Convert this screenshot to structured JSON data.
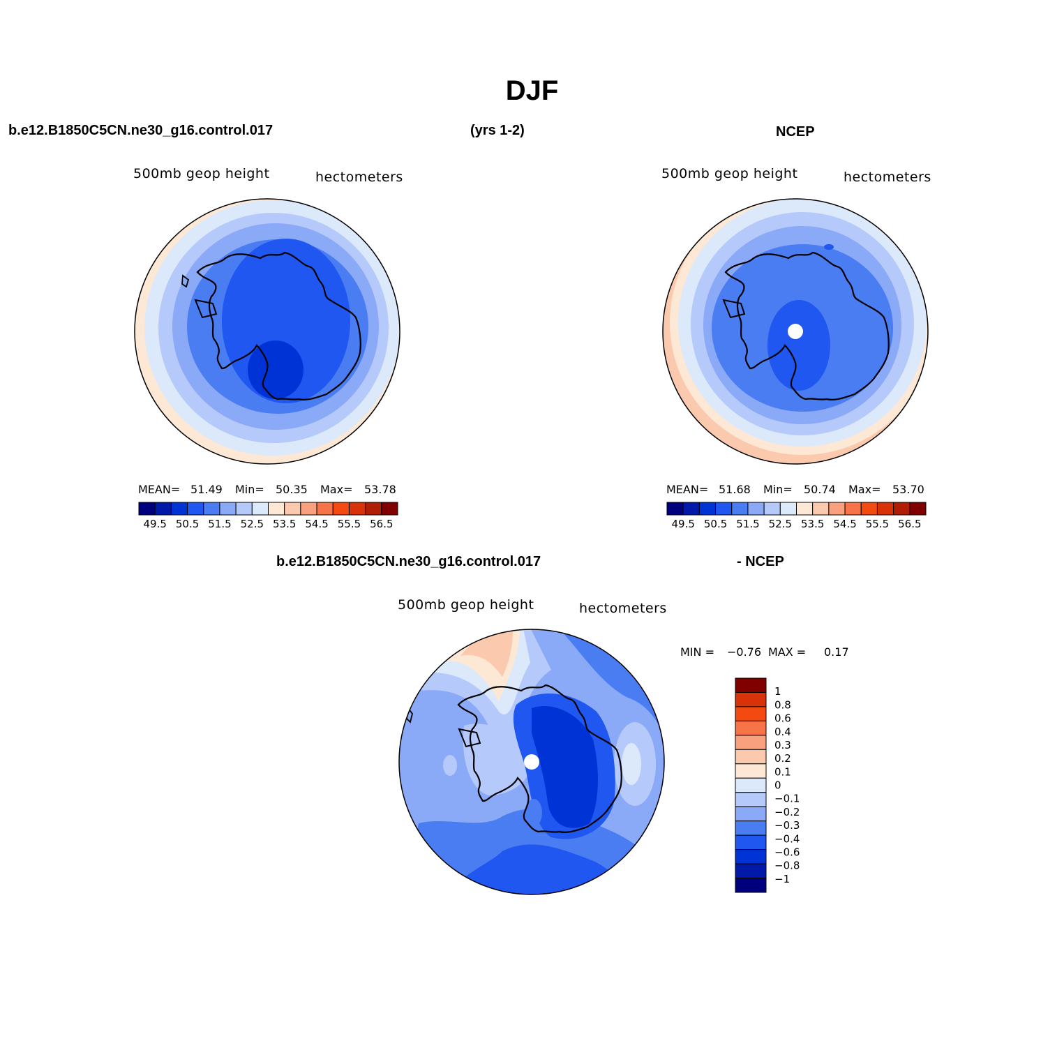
{
  "title": "DJF",
  "header": {
    "case_name": "b.e12.B1850C5CN.ne30_g16.control.017",
    "years": "(yrs 1-2)",
    "obs_name": "NCEP"
  },
  "diff_header": {
    "case_name": "b.e12.B1850C5CN.ne30_g16.control.017",
    "obs_name": "- NCEP"
  },
  "panels": {
    "model": {
      "variable": "500mb  geop  height",
      "units": "hectometers",
      "mean_label": "MEAN=",
      "mean": "51.49",
      "min_label": "Min=",
      "min": "50.35",
      "max_label": "Max=",
      "max": "53.78"
    },
    "obs": {
      "variable": "500mb  geop  height",
      "units": "hectometers",
      "mean_label": "MEAN=",
      "mean": "51.68",
      "min_label": "Min=",
      "min": "50.74",
      "max_label": "Max=",
      "max": "53.70"
    },
    "diff": {
      "variable": "500mb  geop  height",
      "units": "hectometers",
      "min_label": "MIN =",
      "min": "−0.76",
      "max_label": "MAX =",
      "max": "0.17"
    }
  },
  "colors": {
    "abs_scale": [
      "#00007f",
      "#0019a8",
      "#0033d6",
      "#1f57f0",
      "#4a7cf2",
      "#8aa9f7",
      "#b5c9fa",
      "#dbe9fb",
      "#fde8d6",
      "#fbc9ad",
      "#f9a07e",
      "#f77348",
      "#f34a12",
      "#d83208",
      "#b01e05",
      "#800000"
    ],
    "diff_scale": [
      "#00007f",
      "#0019a8",
      "#0033d6",
      "#1f57f0",
      "#4a7cf2",
      "#8aa9f7",
      "#b5c9fa",
      "#dbe9fb",
      "#fde8d6",
      "#fbc9ad",
      "#f9a07e",
      "#f77348",
      "#f34a12",
      "#d83208",
      "#800000"
    ]
  },
  "abs_colorbar": {
    "tick_labels": [
      "49.5",
      "50.5",
      "51.5",
      "52.5",
      "53.5",
      "54.5",
      "55.5",
      "56.5"
    ]
  },
  "diff_colorbar": {
    "tick_labels": [
      "1",
      "0.8",
      "0.6",
      "0.4",
      "0.3",
      "0.2",
      "0.1",
      "0",
      "−0.1",
      "−0.2",
      "−0.3",
      "−0.4",
      "−0.6",
      "−0.8",
      "−1"
    ]
  }
}
